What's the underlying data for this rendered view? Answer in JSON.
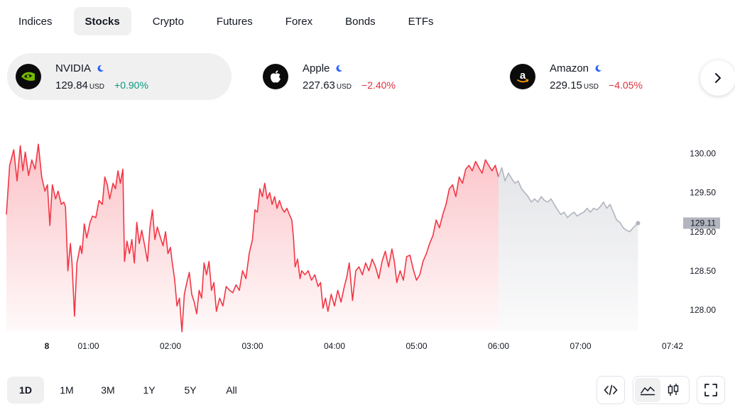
{
  "tabs": [
    {
      "label": "Indices",
      "active": false
    },
    {
      "label": "Stocks",
      "active": true
    },
    {
      "label": "Crypto",
      "active": false
    },
    {
      "label": "Futures",
      "active": false
    },
    {
      "label": "Forex",
      "active": false
    },
    {
      "label": "Bonds",
      "active": false
    },
    {
      "label": "ETFs",
      "active": false
    }
  ],
  "tickers": [
    {
      "name": "NVIDIA",
      "price": "129.84",
      "currency": "USD",
      "change": "+0.90%",
      "direction": "up",
      "active": true,
      "logo": "nvidia-logo"
    },
    {
      "name": "Apple",
      "price": "227.63",
      "currency": "USD",
      "change": "−2.40%",
      "direction": "down",
      "active": false,
      "logo": "apple-logo"
    },
    {
      "name": "Amazon",
      "price": "229.15",
      "currency": "USD",
      "change": "−4.05%",
      "direction": "down",
      "active": false,
      "logo": "amazon-logo"
    }
  ],
  "colors": {
    "up": "#089981",
    "down": "#e0303f",
    "line_main": "#f23645",
    "line_extended": "#b2b5be",
    "moon": "#2962ff"
  },
  "chart_data": {
    "type": "area",
    "y_ticks": [
      "130.00",
      "129.50",
      "129.00",
      "128.50",
      "128.00"
    ],
    "y_range": [
      127.7,
      130.35
    ],
    "x_ticks": [
      "8",
      "01:00",
      "02:00",
      "03:00",
      "04:00",
      "05:00",
      "06:00",
      "07:00",
      "07:42"
    ],
    "x_ticks_hours": [
      0.0,
      1.0,
      2.0,
      3.0,
      4.0,
      5.0,
      6.0,
      7.0,
      7.7
    ],
    "last_price_label": "129.11",
    "series": [
      {
        "segment": "regular",
        "points": [
          [
            0.0,
            129.22
          ],
          [
            0.04,
            129.85
          ],
          [
            0.09,
            130.05
          ],
          [
            0.13,
            129.65
          ],
          [
            0.17,
            130.1
          ],
          [
            0.2,
            129.78
          ],
          [
            0.23,
            130.02
          ],
          [
            0.27,
            129.72
          ],
          [
            0.31,
            129.92
          ],
          [
            0.35,
            129.8
          ],
          [
            0.39,
            130.12
          ],
          [
            0.43,
            129.7
          ],
          [
            0.47,
            129.52
          ],
          [
            0.5,
            129.6
          ],
          [
            0.53,
            129.08
          ],
          [
            0.56,
            129.6
          ],
          [
            0.6,
            129.42
          ],
          [
            0.63,
            129.52
          ],
          [
            0.67,
            129.35
          ],
          [
            0.7,
            129.38
          ],
          [
            0.72,
            129.32
          ],
          [
            0.75,
            128.5
          ],
          [
            0.78,
            128.85
          ],
          [
            0.8,
            128.6
          ],
          [
            0.83,
            127.92
          ],
          [
            0.86,
            128.6
          ],
          [
            0.9,
            128.82
          ],
          [
            0.92,
            128.72
          ],
          [
            0.95,
            129.1
          ],
          [
            0.98,
            128.92
          ],
          [
            1.02,
            129.12
          ],
          [
            1.05,
            129.2
          ],
          [
            1.09,
            129.18
          ],
          [
            1.13,
            129.4
          ],
          [
            1.17,
            129.35
          ],
          [
            1.2,
            129.7
          ],
          [
            1.23,
            129.6
          ],
          [
            1.26,
            129.42
          ],
          [
            1.3,
            129.62
          ],
          [
            1.33,
            129.55
          ],
          [
            1.36,
            129.78
          ],
          [
            1.39,
            129.62
          ],
          [
            1.42,
            129.8
          ],
          [
            1.44,
            128.62
          ],
          [
            1.47,
            128.88
          ],
          [
            1.5,
            128.72
          ],
          [
            1.53,
            128.9
          ],
          [
            1.56,
            128.6
          ],
          [
            1.59,
            129.12
          ],
          [
            1.62,
            128.85
          ],
          [
            1.65,
            129.02
          ],
          [
            1.69,
            128.8
          ],
          [
            1.72,
            128.62
          ],
          [
            1.75,
            129.05
          ],
          [
            1.78,
            129.28
          ],
          [
            1.81,
            128.9
          ],
          [
            1.84,
            129.06
          ],
          [
            1.88,
            128.92
          ],
          [
            1.91,
            128.82
          ],
          [
            1.94,
            129.0
          ],
          [
            1.97,
            128.72
          ],
          [
            2.0,
            128.8
          ],
          [
            2.02,
            128.62
          ],
          [
            2.05,
            128.4
          ],
          [
            2.08,
            128.05
          ],
          [
            2.11,
            128.15
          ],
          [
            2.14,
            127.72
          ],
          [
            2.17,
            128.2
          ],
          [
            2.2,
            128.35
          ],
          [
            2.23,
            128.48
          ],
          [
            2.26,
            128.2
          ],
          [
            2.29,
            128.1
          ],
          [
            2.32,
            127.95
          ],
          [
            2.35,
            128.25
          ],
          [
            2.38,
            128.15
          ],
          [
            2.41,
            128.6
          ],
          [
            2.44,
            128.45
          ],
          [
            2.47,
            128.62
          ],
          [
            2.5,
            128.25
          ],
          [
            2.53,
            128.35
          ],
          [
            2.56,
            127.98
          ],
          [
            2.6,
            128.15
          ],
          [
            2.64,
            128.05
          ],
          [
            2.68,
            128.3
          ],
          [
            2.72,
            128.25
          ],
          [
            2.76,
            128.22
          ],
          [
            2.8,
            128.32
          ],
          [
            2.84,
            128.25
          ],
          [
            2.88,
            128.5
          ],
          [
            2.92,
            128.4
          ],
          [
            2.96,
            128.72
          ],
          [
            3.0,
            128.9
          ],
          [
            3.03,
            129.28
          ],
          [
            3.06,
            129.25
          ],
          [
            3.09,
            129.55
          ],
          [
            3.12,
            129.45
          ],
          [
            3.15,
            129.62
          ],
          [
            3.18,
            129.42
          ],
          [
            3.21,
            129.5
          ],
          [
            3.24,
            129.35
          ],
          [
            3.27,
            129.45
          ],
          [
            3.3,
            129.3
          ],
          [
            3.33,
            129.4
          ],
          [
            3.36,
            129.3
          ],
          [
            3.39,
            129.25
          ],
          [
            3.42,
            129.3
          ],
          [
            3.45,
            129.22
          ],
          [
            3.48,
            129.15
          ],
          [
            3.5,
            128.92
          ],
          [
            3.52,
            128.55
          ],
          [
            3.55,
            128.65
          ],
          [
            3.58,
            128.4
          ],
          [
            3.6,
            128.5
          ],
          [
            3.64,
            128.45
          ],
          [
            3.68,
            128.5
          ],
          [
            3.72,
            128.38
          ],
          [
            3.76,
            128.45
          ],
          [
            3.8,
            128.3
          ],
          [
            3.83,
            128.35
          ],
          [
            3.86,
            128.02
          ],
          [
            3.89,
            128.15
          ],
          [
            3.92,
            127.98
          ],
          [
            3.96,
            128.2
          ],
          [
            4.0,
            128.05
          ],
          [
            4.04,
            128.25
          ],
          [
            4.08,
            128.1
          ],
          [
            4.12,
            128.3
          ],
          [
            4.15,
            128.42
          ],
          [
            4.18,
            128.6
          ],
          [
            4.22,
            128.12
          ],
          [
            4.26,
            128.5
          ],
          [
            4.3,
            128.55
          ],
          [
            4.34,
            128.45
          ],
          [
            4.38,
            128.6
          ],
          [
            4.42,
            128.5
          ],
          [
            4.46,
            128.65
          ],
          [
            4.5,
            128.55
          ],
          [
            4.54,
            128.4
          ],
          [
            4.58,
            128.62
          ],
          [
            4.62,
            128.75
          ],
          [
            4.66,
            128.55
          ],
          [
            4.7,
            128.78
          ],
          [
            4.73,
            128.62
          ],
          [
            4.76,
            128.35
          ],
          [
            4.8,
            128.5
          ],
          [
            4.84,
            128.38
          ],
          [
            4.88,
            128.68
          ],
          [
            4.92,
            128.7
          ],
          [
            4.96,
            128.52
          ],
          [
            5.0,
            128.38
          ],
          [
            5.04,
            128.45
          ],
          [
            5.08,
            128.62
          ],
          [
            5.12,
            128.72
          ],
          [
            5.16,
            128.85
          ],
          [
            5.2,
            128.95
          ],
          [
            5.24,
            129.15
          ],
          [
            5.28,
            129.05
          ],
          [
            5.32,
            129.22
          ],
          [
            5.36,
            129.35
          ],
          [
            5.4,
            129.55
          ],
          [
            5.44,
            129.6
          ],
          [
            5.48,
            129.45
          ],
          [
            5.52,
            129.7
          ],
          [
            5.56,
            129.62
          ],
          [
            5.6,
            129.8
          ],
          [
            5.64,
            129.85
          ],
          [
            5.68,
            129.78
          ],
          [
            5.72,
            129.9
          ],
          [
            5.76,
            129.82
          ],
          [
            5.8,
            129.75
          ],
          [
            5.84,
            129.92
          ],
          [
            5.88,
            129.85
          ],
          [
            5.92,
            129.78
          ],
          [
            5.96,
            129.85
          ],
          [
            6.0,
            129.7
          ]
        ]
      },
      {
        "segment": "extended",
        "points": [
          [
            6.0,
            129.7
          ],
          [
            6.04,
            129.82
          ],
          [
            6.08,
            129.65
          ],
          [
            6.12,
            129.75
          ],
          [
            6.16,
            129.68
          ],
          [
            6.2,
            129.62
          ],
          [
            6.24,
            129.65
          ],
          [
            6.28,
            129.55
          ],
          [
            6.32,
            129.5
          ],
          [
            6.36,
            129.45
          ],
          [
            6.4,
            129.38
          ],
          [
            6.44,
            129.42
          ],
          [
            6.48,
            129.38
          ],
          [
            6.52,
            129.45
          ],
          [
            6.56,
            129.4
          ],
          [
            6.6,
            129.38
          ],
          [
            6.64,
            129.42
          ],
          [
            6.68,
            129.35
          ],
          [
            6.72,
            129.28
          ],
          [
            6.76,
            129.22
          ],
          [
            6.8,
            129.25
          ],
          [
            6.84,
            129.18
          ],
          [
            6.88,
            129.22
          ],
          [
            6.92,
            129.25
          ],
          [
            6.96,
            129.2
          ],
          [
            7.0,
            129.23
          ],
          [
            7.04,
            129.25
          ],
          [
            7.08,
            129.3
          ],
          [
            7.12,
            129.25
          ],
          [
            7.16,
            129.3
          ],
          [
            7.2,
            129.28
          ],
          [
            7.24,
            129.32
          ],
          [
            7.28,
            129.38
          ],
          [
            7.32,
            129.3
          ],
          [
            7.36,
            129.35
          ],
          [
            7.4,
            129.25
          ],
          [
            7.44,
            129.15
          ],
          [
            7.48,
            129.12
          ],
          [
            7.52,
            129.05
          ],
          [
            7.56,
            129.02
          ],
          [
            7.6,
            129.0
          ],
          [
            7.64,
            129.05
          ],
          [
            7.7,
            129.11
          ]
        ]
      }
    ]
  },
  "time_ranges": [
    {
      "label": "1D",
      "active": true
    },
    {
      "label": "1M",
      "active": false
    },
    {
      "label": "3M",
      "active": false
    },
    {
      "label": "1Y",
      "active": false
    },
    {
      "label": "5Y",
      "active": false
    },
    {
      "label": "All",
      "active": false
    }
  ],
  "tools": {
    "embed": "code-icon",
    "area": "area-chart-icon",
    "candles": "candlestick-icon",
    "fullscreen": "fullscreen-icon"
  }
}
